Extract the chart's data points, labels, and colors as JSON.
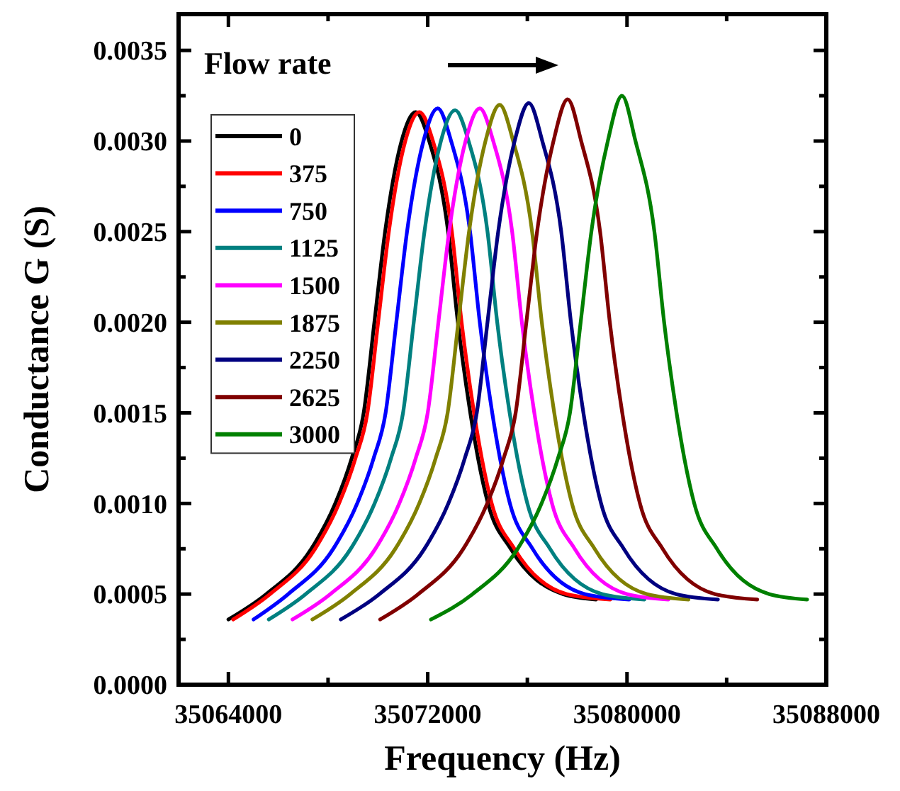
{
  "chart_data": {
    "type": "line",
    "xlabel": "Frequency (Hz)",
    "ylabel": "Conductance G (S)",
    "annotations": [
      "Flow rate"
    ],
    "xlim": [
      35062000,
      35088000
    ],
    "ylim": [
      0,
      0.0037
    ],
    "xticks": [
      35064000,
      {
        "value": 35068000,
        "label": null
      },
      35072000,
      {
        "value": 35076000,
        "label": null
      },
      35080000,
      {
        "value": 35084000,
        "label": null
      },
      35088000
    ],
    "yticks": [
      {
        "value": 0,
        "label": "0.0000"
      },
      {
        "value": 0.00025,
        "label": null
      },
      0.0005,
      {
        "value": 0.00075,
        "label": null
      },
      {
        "value": 0.001,
        "label": "0.0010"
      },
      {
        "value": 0.00125,
        "label": null
      },
      0.0015,
      {
        "value": 0.00175,
        "label": null
      },
      {
        "value": 0.002,
        "label": "0.0020"
      },
      {
        "value": 0.00225,
        "label": null
      },
      0.0025,
      {
        "value": 0.00275,
        "label": null
      },
      {
        "value": 0.003,
        "label": "0.0030"
      },
      {
        "value": 0.00325,
        "label": null
      },
      0.0035
    ],
    "grid": false,
    "legend": "top left",
    "marker": "none",
    "line_style": "solid",
    "series": [
      {
        "name": "0",
        "color": "#000000",
        "x": [
          35064000,
          35065520,
          35067330,
          35068290,
          35068950,
          35069430,
          35069860,
          35070290,
          35070950,
          35071520,
          35072060,
          35072820,
          35073210,
          35073710,
          35074020,
          35074420,
          35075330,
          35077430,
          35078760
        ],
        "values": [
          0.00036,
          0.0005,
          0.00075,
          0.001,
          0.00125,
          0.0015,
          0.002,
          0.0025,
          0.003,
          0.00316,
          0.003,
          0.0025,
          0.002,
          0.0015,
          0.00125,
          0.001,
          0.00075,
          0.0005,
          0.00047
        ]
      },
      {
        "name": "375",
        "color": "#ff0000",
        "x": [
          35064190,
          35065670,
          35067480,
          35068440,
          35069100,
          35069580,
          35070010,
          35070440,
          35071100,
          35071670,
          35072210,
          35072970,
          35073360,
          35073860,
          35074170,
          35074570,
          35075480,
          35077580,
          35079330
        ],
        "values": [
          0.00036,
          0.0005,
          0.00075,
          0.001,
          0.00125,
          0.0015,
          0.002,
          0.0025,
          0.003,
          0.00316,
          0.003,
          0.0025,
          0.002,
          0.0015,
          0.00125,
          0.001,
          0.00075,
          0.0005,
          0.00047
        ]
      },
      {
        "name": "750",
        "color": "#0000ff",
        "x": [
          35065010,
          35066400,
          35068210,
          35069170,
          35069830,
          35070310,
          35070740,
          35071170,
          35071830,
          35072400,
          35072940,
          35073700,
          35074090,
          35074590,
          35074900,
          35075300,
          35076210,
          35078310,
          35080090
        ],
        "values": [
          0.00036,
          0.0005,
          0.00075,
          0.001,
          0.00125,
          0.0015,
          0.002,
          0.0025,
          0.003,
          0.00318,
          0.003,
          0.0025,
          0.002,
          0.0015,
          0.00125,
          0.001,
          0.00075,
          0.0005,
          0.00047
        ]
      },
      {
        "name": "1125",
        "color": "#008080",
        "x": [
          35065620,
          35067100,
          35068910,
          35069870,
          35070530,
          35071010,
          35071440,
          35071870,
          35072530,
          35073100,
          35073640,
          35074400,
          35074790,
          35075290,
          35075600,
          35076000,
          35076910,
          35079010,
          35080700
        ],
        "values": [
          0.00036,
          0.0005,
          0.00075,
          0.001,
          0.00125,
          0.0015,
          0.002,
          0.0025,
          0.003,
          0.00317,
          0.003,
          0.0025,
          0.002,
          0.0015,
          0.00125,
          0.001,
          0.00075,
          0.0005,
          0.00047
        ]
      },
      {
        "name": "1500",
        "color": "#ff00ff",
        "x": [
          35066570,
          35068090,
          35069900,
          35070860,
          35071520,
          35072000,
          35072430,
          35072860,
          35073520,
          35074090,
          35074630,
          35075390,
          35075780,
          35076280,
          35076590,
          35076990,
          35077900,
          35080000,
          35081660
        ],
        "values": [
          0.00036,
          0.0005,
          0.00075,
          0.001,
          0.00125,
          0.0015,
          0.002,
          0.0025,
          0.003,
          0.00318,
          0.003,
          0.0025,
          0.002,
          0.0015,
          0.00125,
          0.001,
          0.00075,
          0.0005,
          0.00047
        ]
      },
      {
        "name": "1875",
        "color": "#808000",
        "x": [
          35067370,
          35068890,
          35070700,
          35071660,
          35072320,
          35072800,
          35073230,
          35073660,
          35074320,
          35074890,
          35075430,
          35076190,
          35076580,
          35077080,
          35077390,
          35077790,
          35078700,
          35080800,
          35082470
        ],
        "values": [
          0.00036,
          0.0005,
          0.00075,
          0.001,
          0.00125,
          0.0015,
          0.002,
          0.0025,
          0.003,
          0.0032,
          0.003,
          0.0025,
          0.002,
          0.0015,
          0.00125,
          0.001,
          0.00075,
          0.0005,
          0.00047
        ]
      },
      {
        "name": "2250",
        "color": "#000080",
        "x": [
          35068510,
          35070060,
          35071870,
          35072830,
          35073490,
          35073970,
          35074400,
          35074830,
          35075490,
          35076060,
          35076600,
          35077360,
          35077750,
          35078250,
          35078560,
          35078960,
          35079870,
          35081970,
          35083650
        ],
        "values": [
          0.00036,
          0.0005,
          0.00075,
          0.001,
          0.00125,
          0.0015,
          0.002,
          0.0025,
          0.003,
          0.00321,
          0.003,
          0.0025,
          0.002,
          0.0015,
          0.00125,
          0.001,
          0.00075,
          0.0005,
          0.00047
        ]
      },
      {
        "name": "2625",
        "color": "#800000",
        "x": [
          35070090,
          35071620,
          35073430,
          35074390,
          35075050,
          35075530,
          35075960,
          35076390,
          35077050,
          35077620,
          35078160,
          35078920,
          35079310,
          35079810,
          35080120,
          35080520,
          35081430,
          35083530,
          35085230
        ],
        "values": [
          0.00036,
          0.0005,
          0.00075,
          0.001,
          0.00125,
          0.0015,
          0.002,
          0.0025,
          0.003,
          0.00323,
          0.003,
          0.0025,
          0.002,
          0.0015,
          0.00125,
          0.001,
          0.00075,
          0.0005,
          0.00047
        ]
      },
      {
        "name": "3000",
        "color": "#008000",
        "x": [
          35072130,
          35073800,
          35075610,
          35076570,
          35077230,
          35077710,
          35078140,
          35078570,
          35079230,
          35079800,
          35080340,
          35081100,
          35081490,
          35081990,
          35082300,
          35082700,
          35083610,
          35085710,
          35087230
        ],
        "values": [
          0.00036,
          0.0005,
          0.00075,
          0.001,
          0.00125,
          0.0015,
          0.002,
          0.0025,
          0.003,
          0.00325,
          0.003,
          0.0025,
          0.002,
          0.0015,
          0.00125,
          0.001,
          0.00075,
          0.0005,
          0.00047
        ]
      }
    ]
  }
}
